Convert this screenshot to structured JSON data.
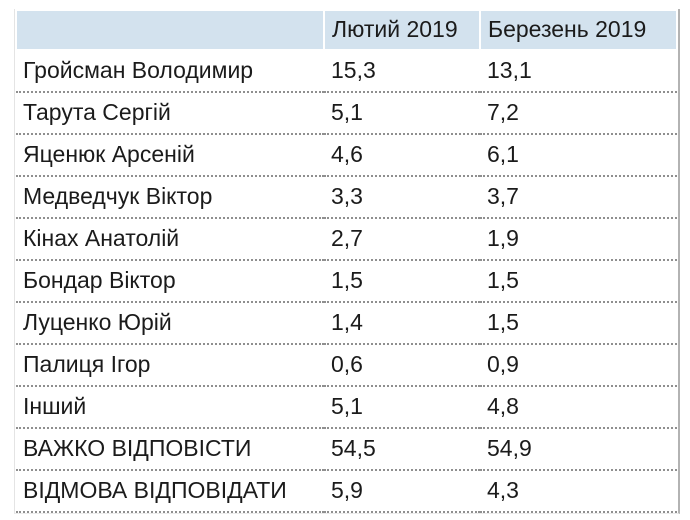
{
  "table": {
    "columns": [
      "",
      "Лютий 2019",
      "Березень 2019"
    ],
    "rows": [
      {
        "name": "Гройсман Володимир",
        "feb": "15,3",
        "mar": "13,1"
      },
      {
        "name": "Тарута Сергій",
        "feb": "5,1",
        "mar": "7,2"
      },
      {
        "name": "Яценюк Арсеній",
        "feb": "4,6",
        "mar": "6,1"
      },
      {
        "name": "Медведчук Віктор",
        "feb": "3,3",
        "mar": "3,7"
      },
      {
        "name": "Кінах Анатолій",
        "feb": "2,7",
        "mar": "1,9"
      },
      {
        "name": "Бондар Віктор",
        "feb": "1,5",
        "mar": "1,5"
      },
      {
        "name": "Луценко Юрій",
        "feb": "1,4",
        "mar": "1,5"
      },
      {
        "name": "Палиця Ігор",
        "feb": "0,6",
        "mar": "0,9"
      },
      {
        "name": "Інший",
        "feb": "5,1",
        "mar": "4,8"
      },
      {
        "name": "ВАЖКО ВІДПОВІСТИ",
        "feb": "54,5",
        "mar": "54,9"
      },
      {
        "name": "ВІДМОВА ВІДПОВІДАТИ",
        "feb": "5,9",
        "mar": "4,3"
      }
    ]
  },
  "colors": {
    "header_bg": "#d3e2ee",
    "row_border": "#8f8f8f",
    "text": "#1b1b1b"
  },
  "chart_data": {
    "type": "table",
    "title": "",
    "categories": [
      "Гройсман Володимир",
      "Тарута Сергій",
      "Яценюк Арсеній",
      "Медведчук Віктор",
      "Кінах Анатолій",
      "Бондар Віктор",
      "Луценко Юрій",
      "Палиця Ігор",
      "Інший",
      "ВАЖКО ВІДПОВІСТИ",
      "ВІДМОВА ВІДПОВІДАТИ"
    ],
    "series": [
      {
        "name": "Лютий 2019",
        "values": [
          15.3,
          5.1,
          4.6,
          3.3,
          2.7,
          1.5,
          1.4,
          0.6,
          5.1,
          54.5,
          5.9
        ]
      },
      {
        "name": "Березень 2019",
        "values": [
          13.1,
          7.2,
          6.1,
          3.7,
          1.9,
          1.5,
          1.5,
          0.9,
          4.8,
          54.9,
          4.3
        ]
      }
    ],
    "value_format": "decimal-comma",
    "legend_position": "none",
    "grid": "dotted-row-separators"
  }
}
